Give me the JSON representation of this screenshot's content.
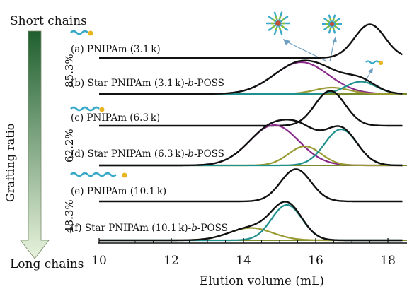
{
  "figure": {
    "top_label": "Short chains",
    "bottom_label": "Long chains",
    "vertical_label": "Grafting ratio",
    "ratios": [
      "85.3%",
      "62.2%",
      "48.3%"
    ],
    "arrow_colors": [
      "#1f5f2f",
      "#e8f3dd"
    ]
  },
  "colors": {
    "total": "#111111",
    "magenta": "#8a2a8a",
    "olive": "#9a9a33",
    "teal": "#20908e",
    "baseline": "#7a8a2a"
  },
  "chart_data": {
    "type": "line",
    "title": "",
    "xlabel": "Elution volume (mL)",
    "ylabel": "",
    "xlim": [
      10,
      18.4
    ],
    "xticks": [
      "10",
      "12",
      "14",
      "16",
      "18"
    ],
    "grid": false,
    "traces": [
      {
        "id": "a",
        "label": "(a) PNIPAm (3.1 k)",
        "peaks": [
          {
            "center": 17.5,
            "width": 0.42,
            "height": 0.95,
            "color": "total"
          }
        ]
      },
      {
        "id": "b",
        "label": "(b) Star PNIPAm (3.1 k)-b-POSS",
        "total": true,
        "peaks": [
          {
            "center": 15.6,
            "width": 0.75,
            "height": 0.9,
            "color": "magenta"
          },
          {
            "center": 16.45,
            "width": 0.48,
            "height": 0.18,
            "color": "olive"
          },
          {
            "center": 17.25,
            "width": 0.42,
            "height": 0.35,
            "color": "teal"
          }
        ]
      },
      {
        "id": "c",
        "label": "(c) PNIPAm (6.3 k)",
        "peaks": [
          {
            "center": 16.4,
            "width": 0.42,
            "height": 0.95,
            "color": "total"
          }
        ]
      },
      {
        "id": "d",
        "label": "(d) Star PNIPAm (6.3 k)-b-POSS",
        "total": true,
        "peaks": [
          {
            "center": 14.85,
            "width": 0.68,
            "height": 0.95,
            "color": "magenta"
          },
          {
            "center": 15.7,
            "width": 0.45,
            "height": 0.45,
            "color": "olive"
          },
          {
            "center": 16.7,
            "width": 0.45,
            "height": 0.85,
            "color": "teal"
          }
        ]
      },
      {
        "id": "e",
        "label": "(e) PNIPAm (10.1 k)",
        "peaks": [
          {
            "center": 15.45,
            "width": 0.42,
            "height": 0.95,
            "color": "total"
          }
        ]
      },
      {
        "id": "f",
        "label": "(f) Star PNIPAm (10.1 k)-b-POSS",
        "total": true,
        "peaks": [
          {
            "center": 14.2,
            "width": 0.6,
            "height": 0.35,
            "color": "olive"
          },
          {
            "center": 15.2,
            "width": 0.42,
            "height": 1.0,
            "color": "teal"
          }
        ]
      }
    ]
  }
}
